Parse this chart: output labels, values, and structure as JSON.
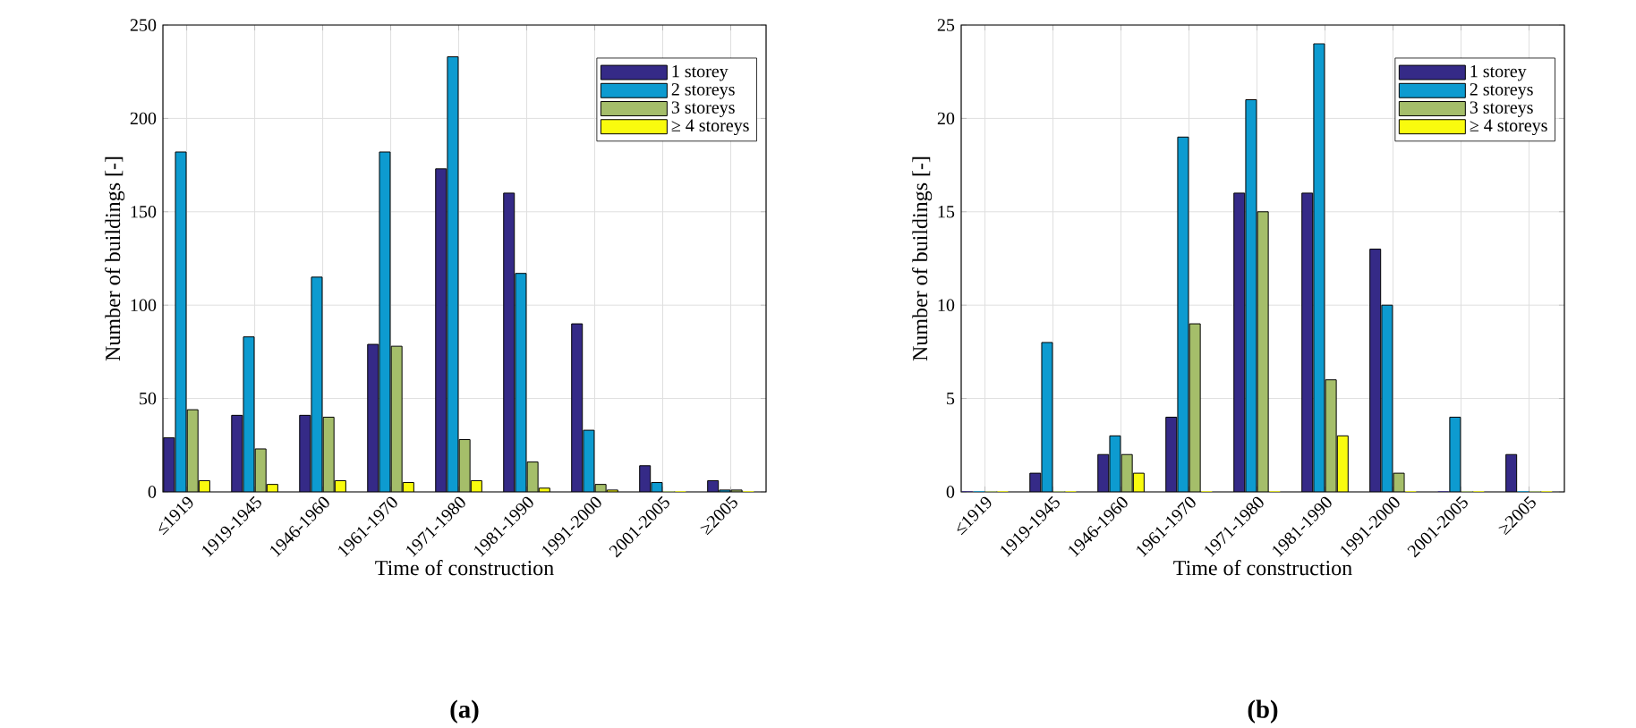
{
  "chart_data": [
    {
      "type": "bar",
      "title": "(a)",
      "xlabel": "Time of construction",
      "ylabel": "Number of buildings [-]",
      "categories": [
        "≤1919",
        "1919-1945",
        "1946-1960",
        "1961-1970",
        "1971-1980",
        "1981-1990",
        "1991-2000",
        "2001-2005",
        "≥2005"
      ],
      "series": [
        {
          "name": "1 storey",
          "color": "#352a87",
          "values": [
            29,
            41,
            41,
            79,
            173,
            160,
            90,
            14,
            6
          ]
        },
        {
          "name": "2 storeys",
          "color": "#0d9bd0",
          "values": [
            182,
            83,
            115,
            182,
            233,
            117,
            33,
            5,
            1
          ]
        },
        {
          "name": "3 storeys",
          "color": "#a5be6a",
          "values": [
            44,
            23,
            40,
            78,
            28,
            16,
            4,
            0,
            1
          ]
        },
        {
          "name": "≥ 4 storeys",
          "color": "#f9fb0e",
          "values": [
            6,
            4,
            6,
            5,
            6,
            2,
            1,
            0,
            0
          ]
        }
      ],
      "ylim": [
        0,
        250
      ],
      "yticks": [
        0,
        50,
        100,
        150,
        200,
        250
      ],
      "grid": true,
      "legend": "top right"
    },
    {
      "type": "bar",
      "title": "(b)",
      "xlabel": "Time of construction",
      "ylabel": "Number of buildings [-]",
      "categories": [
        "≤1919",
        "1919-1945",
        "1946-1960",
        "1961-1970",
        "1971-1980",
        "1981-1990",
        "1991-2000",
        "2001-2005",
        "≥2005"
      ],
      "series": [
        {
          "name": "1 storey",
          "color": "#352a87",
          "values": [
            0,
            1,
            2,
            4,
            16,
            16,
            13,
            0,
            2
          ]
        },
        {
          "name": "2 storeys",
          "color": "#0d9bd0",
          "values": [
            0,
            8,
            3,
            19,
            21,
            24,
            10,
            4,
            0
          ]
        },
        {
          "name": "3 storeys",
          "color": "#a5be6a",
          "values": [
            0,
            0,
            2,
            9,
            15,
            6,
            1,
            0,
            0
          ]
        },
        {
          "name": "≥ 4 storeys",
          "color": "#f9fb0e",
          "values": [
            0,
            0,
            1,
            0,
            0,
            3,
            0,
            0,
            0
          ]
        }
      ],
      "ylim": [
        0,
        25
      ],
      "yticks": [
        0,
        5,
        10,
        15,
        20,
        25
      ],
      "grid": true,
      "legend": "top right"
    }
  ]
}
